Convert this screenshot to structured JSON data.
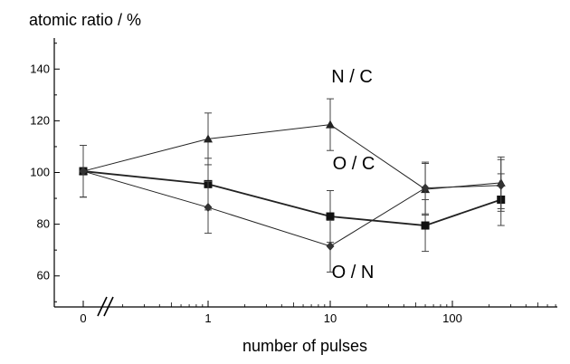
{
  "chart_data": {
    "type": "line",
    "ylabel": "atomic ratio / %",
    "xlabel": "number of pulses",
    "x_scale": "log with axis break after 0",
    "ylim": [
      48,
      152
    ],
    "y_ticks": [
      60,
      80,
      100,
      120,
      140
    ],
    "y_tick_labels": [
      "60",
      "80",
      "100",
      "120",
      "140"
    ],
    "x_ticks": [
      0,
      1,
      10,
      100
    ],
    "x_tick_labels": [
      "0",
      "1",
      "10",
      "100"
    ],
    "grid": false,
    "series": [
      {
        "name": "N / C",
        "marker": "triangle",
        "points": [
          {
            "x": 0,
            "y": 100.5,
            "err": 10
          },
          {
            "x": 1,
            "y": 113,
            "err": 10
          },
          {
            "x": 10,
            "y": 118.5,
            "err": 10
          },
          {
            "x": 60,
            "y": 93.5,
            "err": 10
          },
          {
            "x": 250,
            "y": 96,
            "err": 10
          }
        ]
      },
      {
        "name": "O / C",
        "marker": "square",
        "points": [
          {
            "x": 0,
            "y": 100.5,
            "err": 10
          },
          {
            "x": 1,
            "y": 95.5,
            "err": 10
          },
          {
            "x": 10,
            "y": 83,
            "err": 10
          },
          {
            "x": 60,
            "y": 79.5,
            "err": 10
          },
          {
            "x": 250,
            "y": 89.5,
            "err": 10
          }
        ]
      },
      {
        "name": "O / N",
        "marker": "diamond",
        "points": [
          {
            "x": 0,
            "y": 100.5,
            "err": 10
          },
          {
            "x": 1,
            "y": 86.5,
            "err": 10
          },
          {
            "x": 10,
            "y": 71.5,
            "err": 10
          },
          {
            "x": 60,
            "y": 94,
            "err": 10
          },
          {
            "x": 250,
            "y": 95,
            "err": 10
          }
        ]
      }
    ]
  }
}
